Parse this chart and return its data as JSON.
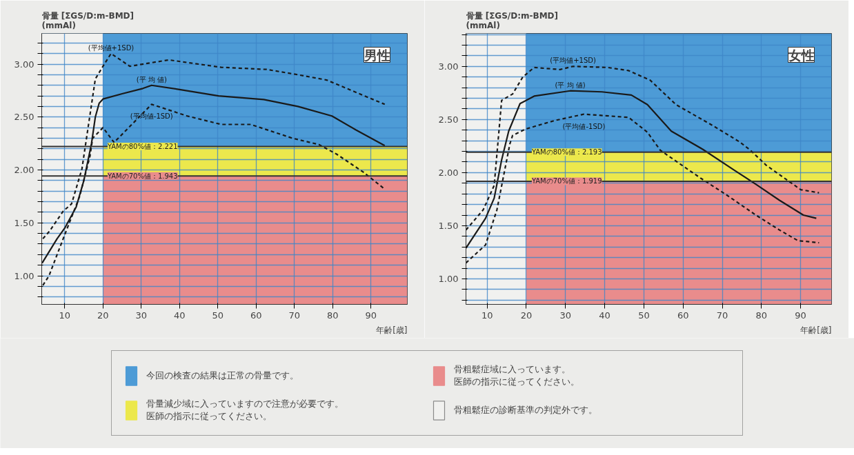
{
  "chart_data": [
    {
      "type": "line",
      "title": "男性",
      "xlabel": "年齢[歳]",
      "ylabel": "骨量 [ΣGS/D:m-BMD]\n(mmAl)",
      "xlim": [
        4,
        99.5
      ],
      "ylim": [
        0.73,
        3.29
      ],
      "xticks": [
        10,
        20,
        30,
        40,
        50,
        60,
        70,
        80,
        90
      ],
      "yticks": [
        {
          "value": 0.8,
          "label": null
        },
        {
          "value": 0.9,
          "label": null
        },
        {
          "value": 1.0,
          "label": "1.00"
        },
        {
          "value": 1.1,
          "label": null
        },
        {
          "value": 1.2,
          "label": null
        },
        {
          "value": 1.3,
          "label": null
        },
        {
          "value": 1.4,
          "label": null
        },
        {
          "value": 1.5,
          "label": "1.50"
        },
        {
          "value": 1.6,
          "label": null
        },
        {
          "value": 1.7,
          "label": null
        },
        {
          "value": 1.8,
          "label": null
        },
        {
          "value": 1.9,
          "label": null
        },
        {
          "value": 2.0,
          "label": "2.00"
        },
        {
          "value": 2.1,
          "label": null
        },
        {
          "value": 2.2,
          "label": null
        },
        {
          "value": 2.3,
          "label": null
        },
        {
          "value": 2.4,
          "label": null
        },
        {
          "value": 2.5,
          "label": "2.50"
        },
        {
          "value": 2.6,
          "label": null
        },
        {
          "value": 2.7,
          "label": null
        },
        {
          "value": 2.8,
          "label": null
        },
        {
          "value": 2.9,
          "label": null
        },
        {
          "value": 3.0,
          "label": "3.00"
        },
        {
          "value": 3.1,
          "label": null
        },
        {
          "value": 3.2,
          "label": null
        }
      ],
      "grid": true,
      "legend": "bottom",
      "bands": [
        {
          "axis": "y",
          "from": 2.221,
          "to": 3.29,
          "color": "#4d9bd6",
          "label": "今回の検査の結果は正常の骨量です。"
        },
        {
          "axis": "y",
          "from": 1.943,
          "to": 2.221,
          "color": "#ece84c",
          "label": "骨量減少域に入っていますので注意が必要です。医師の指示に従ってください。"
        },
        {
          "axis": "y",
          "from": 0.73,
          "to": 1.943,
          "color": "#e98c8c",
          "label": "骨粗鬆症域に入っています。医師の指示に従ってください。"
        },
        {
          "axis": "x",
          "from": 4,
          "to": 20,
          "color": "#f1f1ef",
          "label": "骨粗鬆症の診断基準の判定外です。"
        }
      ],
      "ref_lines": [
        {
          "axis": "y",
          "value": 2.221,
          "label": "YAMの80%値：2.221",
          "color": "#333333"
        },
        {
          "axis": "y",
          "value": 1.943,
          "label": "YAMの70%値：1.943",
          "color": "#333333"
        }
      ],
      "series": [
        {
          "name": "(平均値+1SD)",
          "color": "#1a1a1a",
          "line_style": "dashed",
          "x": [
            4.3,
            6,
            9.6,
            11.8,
            14.5,
            18,
            20,
            22.1,
            27,
            37.2,
            50.9,
            62.7,
            70.9,
            78.4,
            93.6
          ],
          "values": [
            1.35,
            1.42,
            1.61,
            1.68,
            2.01,
            2.86,
            2.98,
            3.1,
            2.98,
            3.04,
            2.97,
            2.95,
            2.9,
            2.85,
            2.62
          ]
        },
        {
          "name": "(平 均 値)",
          "color": "#1a1a1a",
          "line_style": "solid",
          "x": [
            4.1,
            8,
            10,
            13,
            15,
            17,
            18,
            19,
            20,
            25,
            30.4,
            32.7,
            40,
            50.2,
            62,
            70.9,
            79.8,
            86,
            93.6
          ],
          "values": [
            1.12,
            1.35,
            1.45,
            1.65,
            1.9,
            2.25,
            2.5,
            2.63,
            2.67,
            2.72,
            2.77,
            2.8,
            2.76,
            2.7,
            2.665,
            2.6,
            2.51,
            2.38,
            2.23
          ]
        },
        {
          "name": "(平均値-1SD)",
          "color": "#1a1a1a",
          "line_style": "dashed",
          "x": [
            4.3,
            5.9,
            9.6,
            13.9,
            16.6,
            17.3,
            20,
            22.9,
            32.7,
            42,
            50.9,
            58.6,
            69.5,
            76.4,
            81,
            88,
            93.2
          ],
          "values": [
            0.91,
            1.0,
            1.35,
            1.75,
            2.13,
            2.3,
            2.4,
            2.26,
            2.62,
            2.51,
            2.43,
            2.43,
            2.3,
            2.24,
            2.15,
            1.98,
            1.83
          ]
        }
      ]
    },
    {
      "type": "line",
      "title": "女性",
      "xlabel": "年齢[歳]",
      "ylabel": "骨量 [ΣGS/D:m-BMD]\n(mmAl)",
      "xlim": [
        4.6,
        97.9
      ],
      "ylim": [
        0.76,
        3.31
      ],
      "xticks": [
        10,
        20,
        30,
        40,
        50,
        60,
        70,
        80,
        90
      ],
      "yticks": [
        {
          "value": 0.8,
          "label": null
        },
        {
          "value": 0.9,
          "label": null
        },
        {
          "value": 1.0,
          "label": "1.00"
        },
        {
          "value": 1.1,
          "label": null
        },
        {
          "value": 1.2,
          "label": null
        },
        {
          "value": 1.3,
          "label": null
        },
        {
          "value": 1.4,
          "label": null
        },
        {
          "value": 1.5,
          "label": "1.50"
        },
        {
          "value": 1.6,
          "label": null
        },
        {
          "value": 1.7,
          "label": null
        },
        {
          "value": 1.8,
          "label": null
        },
        {
          "value": 1.9,
          "label": null
        },
        {
          "value": 2.0,
          "label": "2.00"
        },
        {
          "value": 2.1,
          "label": null
        },
        {
          "value": 2.2,
          "label": null
        },
        {
          "value": 2.3,
          "label": null
        },
        {
          "value": 2.4,
          "label": null
        },
        {
          "value": 2.5,
          "label": "2.50"
        },
        {
          "value": 2.6,
          "label": null
        },
        {
          "value": 2.7,
          "label": null
        },
        {
          "value": 2.8,
          "label": null
        },
        {
          "value": 2.9,
          "label": null
        },
        {
          "value": 3.0,
          "label": "3.00"
        },
        {
          "value": 3.1,
          "label": null
        },
        {
          "value": 3.2,
          "label": null
        },
        {
          "value": 3.3,
          "label": null
        }
      ],
      "grid": true,
      "bands": [
        {
          "axis": "y",
          "from": 2.193,
          "to": 3.31,
          "color": "#4d9bd6"
        },
        {
          "axis": "y",
          "from": 1.919,
          "to": 2.193,
          "color": "#ece84c"
        },
        {
          "axis": "y",
          "from": 0.76,
          "to": 1.919,
          "color": "#e98c8c"
        },
        {
          "axis": "x",
          "from": 4.6,
          "to": 20,
          "color": "#f1f1ef"
        }
      ],
      "ref_lines": [
        {
          "axis": "y",
          "value": 2.193,
          "label": "YAMの80%値：2.193",
          "color": "#333333"
        },
        {
          "axis": "y",
          "value": 1.919,
          "label": "YAMの70%値：1.919",
          "color": "#333333"
        }
      ],
      "series": [
        {
          "name": "(平均値+1SD)",
          "color": "#1a1a1a",
          "line_style": "dashed",
          "x": [
            4.6,
            9,
            11.8,
            13.7,
            16.5,
            19.1,
            22,
            28.6,
            31.9,
            40.7,
            46.1,
            51.6,
            58.2,
            67.7,
            74.4,
            77.2,
            81.2,
            90,
            94.7
          ],
          "values": [
            1.46,
            1.65,
            1.88,
            2.68,
            2.74,
            2.9,
            2.99,
            2.97,
            3.0,
            2.99,
            2.96,
            2.87,
            2.64,
            2.44,
            2.29,
            2.21,
            2.07,
            1.84,
            1.81
          ]
        },
        {
          "name": "(平 均 値)",
          "color": "#1a1a1a",
          "line_style": "solid",
          "x": [
            4.6,
            9.6,
            11.8,
            13.7,
            15.5,
            18.4,
            22,
            31.2,
            39.3,
            46.8,
            50.9,
            57,
            65,
            73.2,
            78.6,
            84.6,
            90.7,
            94
          ],
          "values": [
            1.29,
            1.57,
            1.76,
            2.12,
            2.39,
            2.65,
            2.72,
            2.77,
            2.76,
            2.73,
            2.64,
            2.39,
            2.22,
            2.02,
            1.89,
            1.74,
            1.6,
            1.57
          ]
        },
        {
          "name": "(平均値-1SD)",
          "color": "#1a1a1a",
          "line_style": "dashed",
          "x": [
            4.6,
            9.6,
            12.5,
            15.8,
            16.5,
            19.8,
            27.2,
            34.7,
            46.1,
            50.9,
            54.2,
            64.4,
            71.1,
            78.6,
            84.6,
            89.3,
            94.7
          ],
          "values": [
            1.15,
            1.32,
            1.65,
            2.27,
            2.35,
            2.41,
            2.49,
            2.55,
            2.52,
            2.38,
            2.21,
            1.95,
            1.79,
            1.6,
            1.46,
            1.36,
            1.34
          ]
        }
      ]
    }
  ]
}
